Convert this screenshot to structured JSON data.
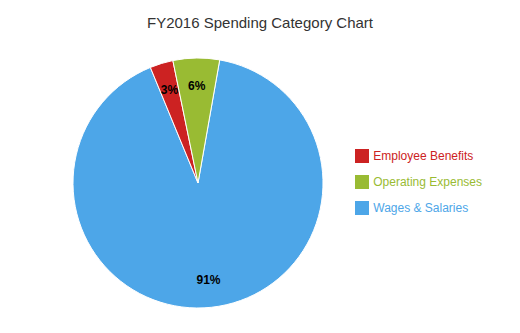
{
  "chart_data": {
    "type": "pie",
    "title": "FY2016 Spending Category Chart",
    "categories": [
      "Wages & Salaries",
      "Employee Benefits",
      "Operating Expenses"
    ],
    "values": [
      91,
      3,
      6
    ],
    "value_labels": [
      "91%",
      "3%",
      "6%"
    ],
    "colors": [
      "#4da6e8",
      "#cc2222",
      "#99bb33"
    ],
    "legend": "right",
    "data_labels": true
  }
}
